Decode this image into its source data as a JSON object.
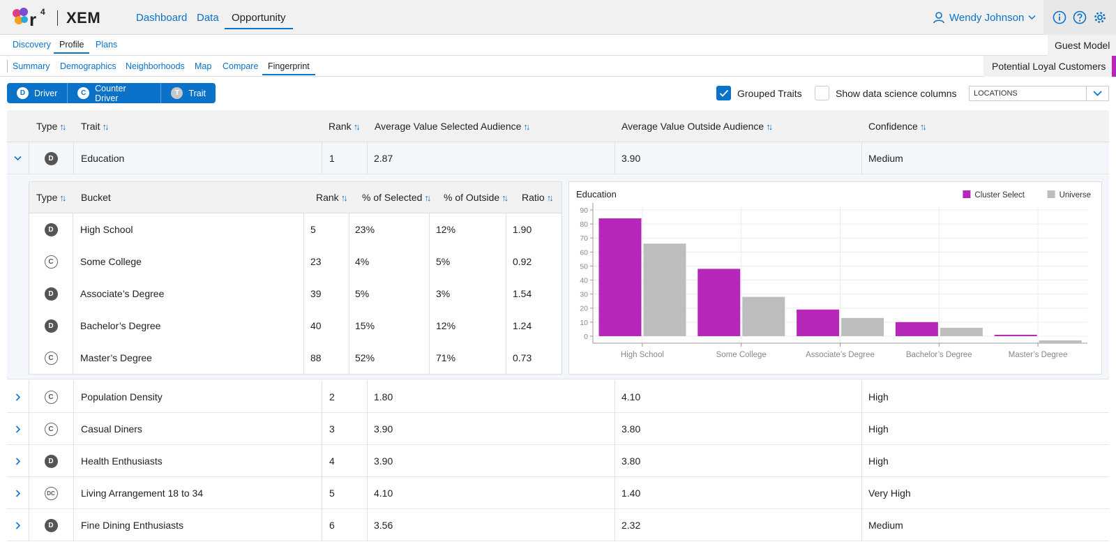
{
  "app": {
    "brand": "XEM",
    "logo_text": "r4"
  },
  "topnav": {
    "items": [
      "Dashboard",
      "Data",
      "Opportunity"
    ],
    "active": "Opportunity"
  },
  "user": {
    "name": "Wendy Johnson"
  },
  "topicons": [
    "info-icon",
    "help-icon",
    "gear-icon"
  ],
  "subnav": {
    "items": [
      "Discovery",
      "Profile",
      "Plans"
    ],
    "active": "Profile",
    "model": "Guest Model"
  },
  "viewnav": {
    "items": [
      "Summary",
      "Demographics",
      "Neighborhoods",
      "Map",
      "Compare",
      "Fingerprint"
    ],
    "active": "Fingerprint",
    "audience": "Potential Loyal Customers"
  },
  "legend": [
    {
      "letter": "D",
      "label": "Driver"
    },
    {
      "letter": "C",
      "label": "Counter Driver"
    },
    {
      "letter": "T",
      "label": "Trait"
    }
  ],
  "options": {
    "grouped_traits": "Grouped Traits",
    "grouped_checked": true,
    "ds_columns": "Show data science columns",
    "ds_checked": false,
    "location_select": "LOCATIONS"
  },
  "table": {
    "headers": {
      "type": "Type",
      "trait": "Trait",
      "rank": "Rank",
      "avg_selected": "Average Value Selected Audience",
      "avg_outside": "Average Value Outside Audience",
      "confidence": "Confidence"
    },
    "rows": [
      {
        "type": "D",
        "trait": "Education",
        "rank": "1",
        "avg_selected": "2.87",
        "avg_outside": "3.90",
        "confidence": "Medium",
        "expanded": true
      },
      {
        "type": "C",
        "trait": "Population Density",
        "rank": "2",
        "avg_selected": "1.80",
        "avg_outside": "4.10",
        "confidence": "High"
      },
      {
        "type": "C",
        "trait": "Casual Diners",
        "rank": "3",
        "avg_selected": "3.90",
        "avg_outside": "3.80",
        "confidence": "High"
      },
      {
        "type": "D",
        "trait": "Health Enthusiasts",
        "rank": "4",
        "avg_selected": "3.90",
        "avg_outside": "3.80",
        "confidence": "High"
      },
      {
        "type": "DC",
        "trait": "Living Arrangement 18 to 34",
        "rank": "5",
        "avg_selected": "4.10",
        "avg_outside": "1.40",
        "confidence": "Very High"
      },
      {
        "type": "D",
        "trait": "Fine Dining Enthusiasts",
        "rank": "6",
        "avg_selected": "3.56",
        "avg_outside": "2.32",
        "confidence": "Medium"
      }
    ]
  },
  "subtable": {
    "headers": {
      "type": "Type",
      "bucket": "Bucket",
      "rank": "Rank",
      "pct_selected": "% of Selected",
      "pct_outside": "% of Outside",
      "ratio": "Ratio"
    },
    "rows": [
      {
        "type": "D",
        "bucket": "High School",
        "rank": "5",
        "pct_selected": "23%",
        "pct_outside": "12%",
        "ratio": "1.90"
      },
      {
        "type": "C",
        "bucket": "Some College",
        "rank": "23",
        "pct_selected": "4%",
        "pct_outside": "5%",
        "ratio": "0.92"
      },
      {
        "type": "D",
        "bucket": "Associate’s Degree",
        "rank": "39",
        "pct_selected": "5%",
        "pct_outside": "3%",
        "ratio": "1.54"
      },
      {
        "type": "D",
        "bucket": "Bachelor’s Degree",
        "rank": "40",
        "pct_selected": "15%",
        "pct_outside": "12%",
        "ratio": "1.24"
      },
      {
        "type": "C",
        "bucket": "Master’s Degree",
        "rank": "88",
        "pct_selected": "52%",
        "pct_outside": "71%",
        "ratio": "0.73"
      }
    ]
  },
  "chart_data": {
    "type": "bar",
    "title": "Education",
    "categories": [
      "High School",
      "Some College",
      "Associate’s Degree",
      "Bachelor’s Degree",
      "Master’s Degree"
    ],
    "series": [
      {
        "name": "Cluster Select",
        "color": "#b626b8",
        "values": [
          84,
          48,
          19,
          10,
          1
        ]
      },
      {
        "name": "Universe",
        "color": "#bdbdbd",
        "values": [
          66,
          28,
          13,
          6,
          -2
        ]
      }
    ],
    "ylim": [
      -5,
      92
    ],
    "yticks": [
      0,
      10,
      20,
      30,
      40,
      50,
      60,
      70,
      80,
      90
    ],
    "grid": true,
    "legend": "top-right"
  },
  "colors": {
    "accent": "#0a72c9",
    "cluster": "#b626b8",
    "universe": "#bdbdbd"
  }
}
